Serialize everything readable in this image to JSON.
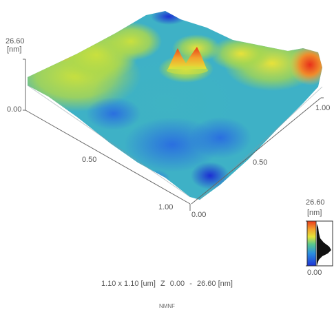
{
  "surface": {
    "z_axis_top": "26.60",
    "z_axis_unit": "[nm]",
    "z_axis_bottom": "0.00",
    "x_axis_ticks": [
      "0.50",
      "1.00"
    ],
    "x_axis_end": "0.00",
    "y_axis_ticks": [
      "0.50",
      "1.00"
    ],
    "colormap": [
      "#1d33d6",
      "#2b8fe0",
      "#3bb6c9",
      "#58c78f",
      "#a6d84a",
      "#e4e33a",
      "#f2a22c",
      "#ec3a1c"
    ],
    "features": [
      "twin-peak near center",
      "high corner at right",
      "raised plateau at left",
      "low basin at bottom-right edge"
    ]
  },
  "colorbar": {
    "max_label": "26.60",
    "unit_label": "[nm]",
    "min_label": "0.00"
  },
  "caption": {
    "scan_size": "1.10 x 1.10 [um]",
    "z_label": "Z",
    "z_min": "0.00",
    "z_dash": "-",
    "z_max": "26.60 [nm]",
    "source": "NMNF"
  }
}
